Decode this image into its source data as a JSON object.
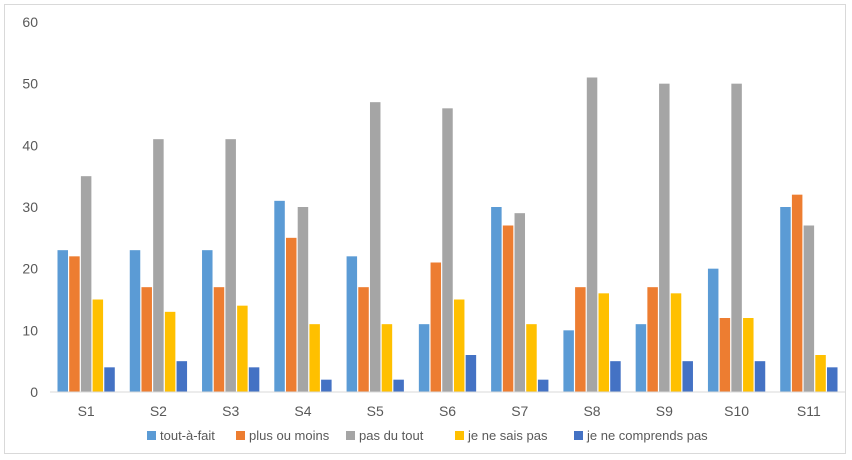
{
  "chart_data": {
    "type": "bar",
    "title": "",
    "xlabel": "",
    "ylabel": "",
    "ylim": [
      0,
      60
    ],
    "yticks": [
      0,
      10,
      20,
      30,
      40,
      50,
      60
    ],
    "grid": false,
    "legend_position": "bottom",
    "categories": [
      "S1",
      "S2",
      "S3",
      "S4",
      "S5",
      "S6",
      "S7",
      "S8",
      "S9",
      "S10",
      "S11"
    ],
    "series": [
      {
        "name": "tout-à-fait",
        "color": "#5b9bd5",
        "values": [
          23,
          23,
          23,
          31,
          22,
          11,
          30,
          10,
          11,
          20,
          30
        ]
      },
      {
        "name": "plus ou moins",
        "color": "#ed7d31",
        "values": [
          22,
          17,
          17,
          25,
          17,
          21,
          27,
          17,
          17,
          12,
          32
        ]
      },
      {
        "name": "pas du tout",
        "color": "#a5a5a5",
        "values": [
          35,
          41,
          41,
          30,
          47,
          46,
          29,
          51,
          50,
          50,
          27
        ]
      },
      {
        "name": "je ne sais pas",
        "color": "#ffc000",
        "values": [
          15,
          13,
          14,
          11,
          11,
          15,
          11,
          16,
          16,
          12,
          6
        ]
      },
      {
        "name": "je ne comprends pas",
        "color": "#4472c4",
        "values": [
          4,
          5,
          4,
          2,
          2,
          6,
          2,
          5,
          5,
          5,
          4
        ]
      }
    ]
  }
}
